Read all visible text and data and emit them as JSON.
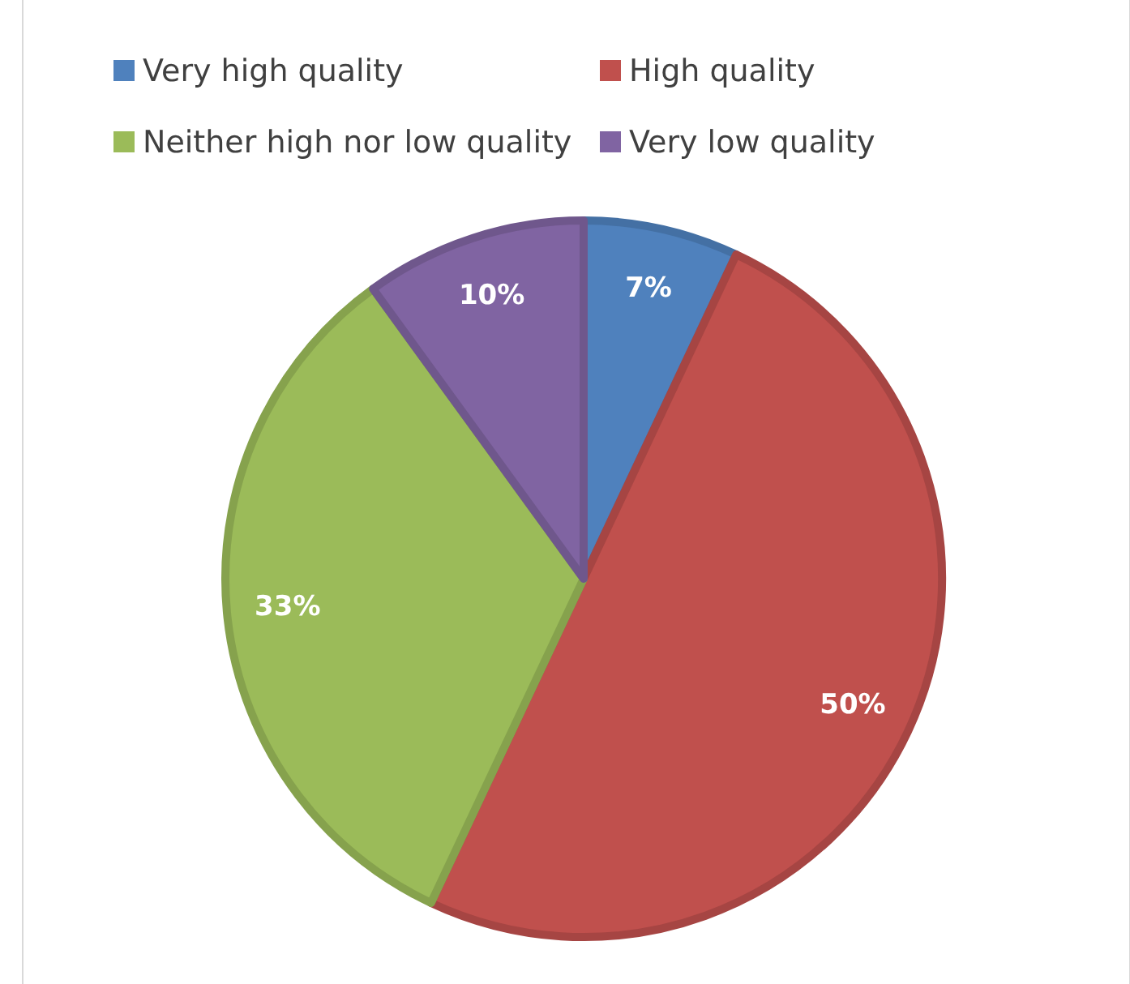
{
  "chart_data": {
    "type": "pie",
    "categories": [
      "Very high quality",
      "High quality",
      "Neither high nor low quality",
      "Very low quality"
    ],
    "values": [
      7,
      50,
      33,
      10
    ],
    "colors": [
      "#4f81bd",
      "#c0504d",
      "#9bbb59",
      "#8064a2"
    ],
    "value_labels": [
      "7%",
      "50%",
      "33%",
      "10%"
    ],
    "legend": "top"
  }
}
